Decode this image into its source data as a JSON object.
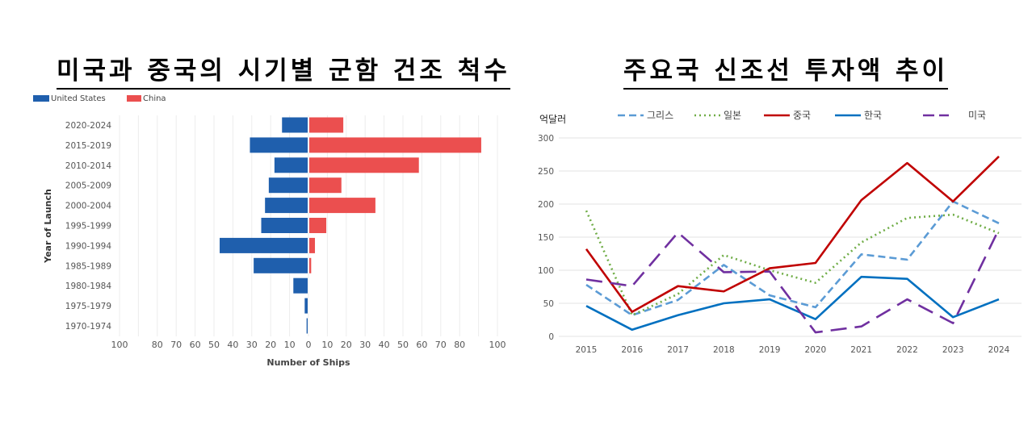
{
  "chart_data": [
    {
      "type": "bar",
      "orientation": "horizontal-diverging",
      "title": "미국과 중국의 시기별 군함 건조 척수",
      "xlabel": "Number of Ships",
      "ylabel": "Year of Launch",
      "xlim": [
        -100,
        100
      ],
      "xticks": [
        "100",
        "80",
        "70",
        "60",
        "50",
        "40",
        "30",
        "20",
        "10",
        "0",
        "10",
        "20",
        "30",
        "40",
        "50",
        "60",
        "70",
        "80",
        "100"
      ],
      "xtick_values": [
        -100,
        -80,
        -70,
        -60,
        -50,
        -40,
        -30,
        -20,
        -10,
        0,
        10,
        20,
        30,
        40,
        50,
        60,
        70,
        80,
        100
      ],
      "grid": true,
      "legend_position": "top-left",
      "categories": [
        "2020-2024",
        "2015-2019",
        "2010-2014",
        "2005-2009",
        "2000-2004",
        "1995-1999",
        "1990-1994",
        "1985-1989",
        "1980-1984",
        "1975-1979",
        "1970-1974"
      ],
      "series": [
        {
          "name": "United States",
          "color": "#1f5fad",
          "values": [
            14,
            31,
            18,
            21,
            23,
            25,
            47,
            29,
            8,
            2,
            1
          ]
        },
        {
          "name": "China",
          "color": "#eb4f4f",
          "values": [
            18,
            91,
            58,
            17,
            35,
            9,
            3,
            1,
            0,
            0,
            0
          ]
        }
      ]
    },
    {
      "type": "line",
      "title": "주요국 신조선 투자액 추이",
      "ylabel": "억달러",
      "ylim": [
        0,
        300
      ],
      "yticks": [
        0,
        50,
        100,
        150,
        200,
        250,
        300
      ],
      "grid": true,
      "legend_position": "top",
      "categories": [
        "2015",
        "2016",
        "2017",
        "2018",
        "2019",
        "2020",
        "2021",
        "2022",
        "2023",
        "2024"
      ],
      "series": [
        {
          "name": "그리스",
          "color": "#5b9bd5",
          "style": "dashed",
          "values": [
            78,
            32,
            55,
            108,
            62,
            44,
            124,
            116,
            204,
            171
          ]
        },
        {
          "name": "일본",
          "color": "#70ad47",
          "style": "dotted",
          "values": [
            190,
            32,
            64,
            123,
            100,
            81,
            142,
            179,
            184,
            156
          ]
        },
        {
          "name": "중국",
          "color": "#c00000",
          "style": "solid",
          "values": [
            132,
            37,
            76,
            68,
            103,
            111,
            206,
            262,
            204,
            272
          ]
        },
        {
          "name": "한국",
          "color": "#0070c0",
          "style": "solid",
          "values": [
            46,
            10,
            32,
            50,
            56,
            26,
            90,
            87,
            29,
            56
          ]
        },
        {
          "name": "미국",
          "color": "#7030a0",
          "style": "longdash",
          "values": [
            86,
            76,
            157,
            97,
            98,
            6,
            15,
            56,
            20,
            162
          ]
        }
      ]
    }
  ]
}
